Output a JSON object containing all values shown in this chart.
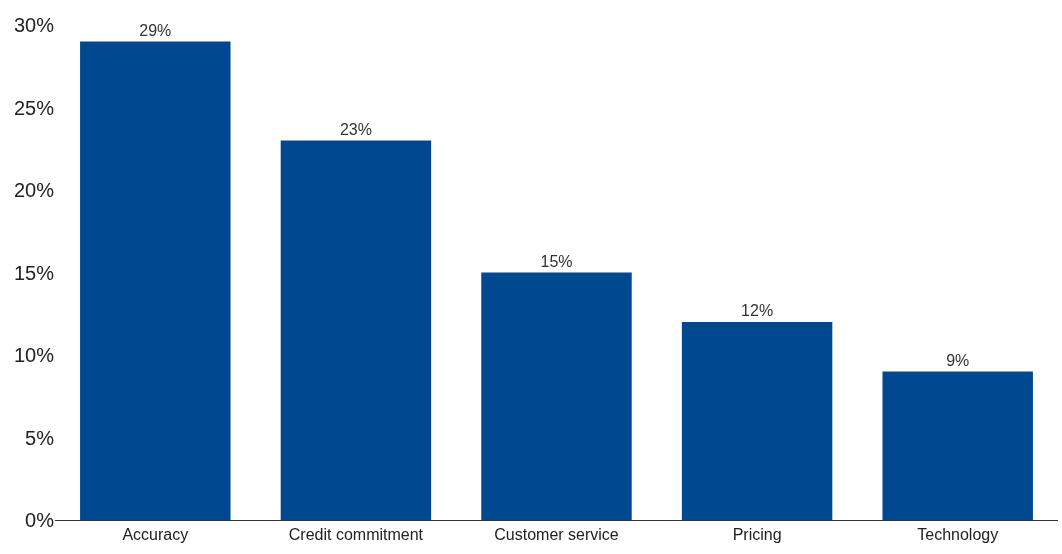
{
  "chart_data": {
    "type": "bar",
    "categories": [
      "Accuracy",
      "Credit commitment",
      "Customer service",
      "Pricing",
      "Technology"
    ],
    "values": [
      29,
      23,
      15,
      12,
      9
    ],
    "color": "#004990",
    "ylim": [
      0,
      30
    ],
    "yticks": [
      {
        "value": 0,
        "label": "0%"
      },
      {
        "value": 5,
        "label": "5%"
      },
      {
        "value": 10,
        "label": "10%"
      },
      {
        "value": 15,
        "label": "15%"
      },
      {
        "value": 20,
        "label": "20%"
      },
      {
        "value": 25,
        "label": "25%"
      },
      {
        "value": 30,
        "label": "30%"
      }
    ],
    "data_labels": true,
    "value_labels": [
      "29%",
      "23%",
      "15%",
      "12%",
      "9%"
    ]
  }
}
